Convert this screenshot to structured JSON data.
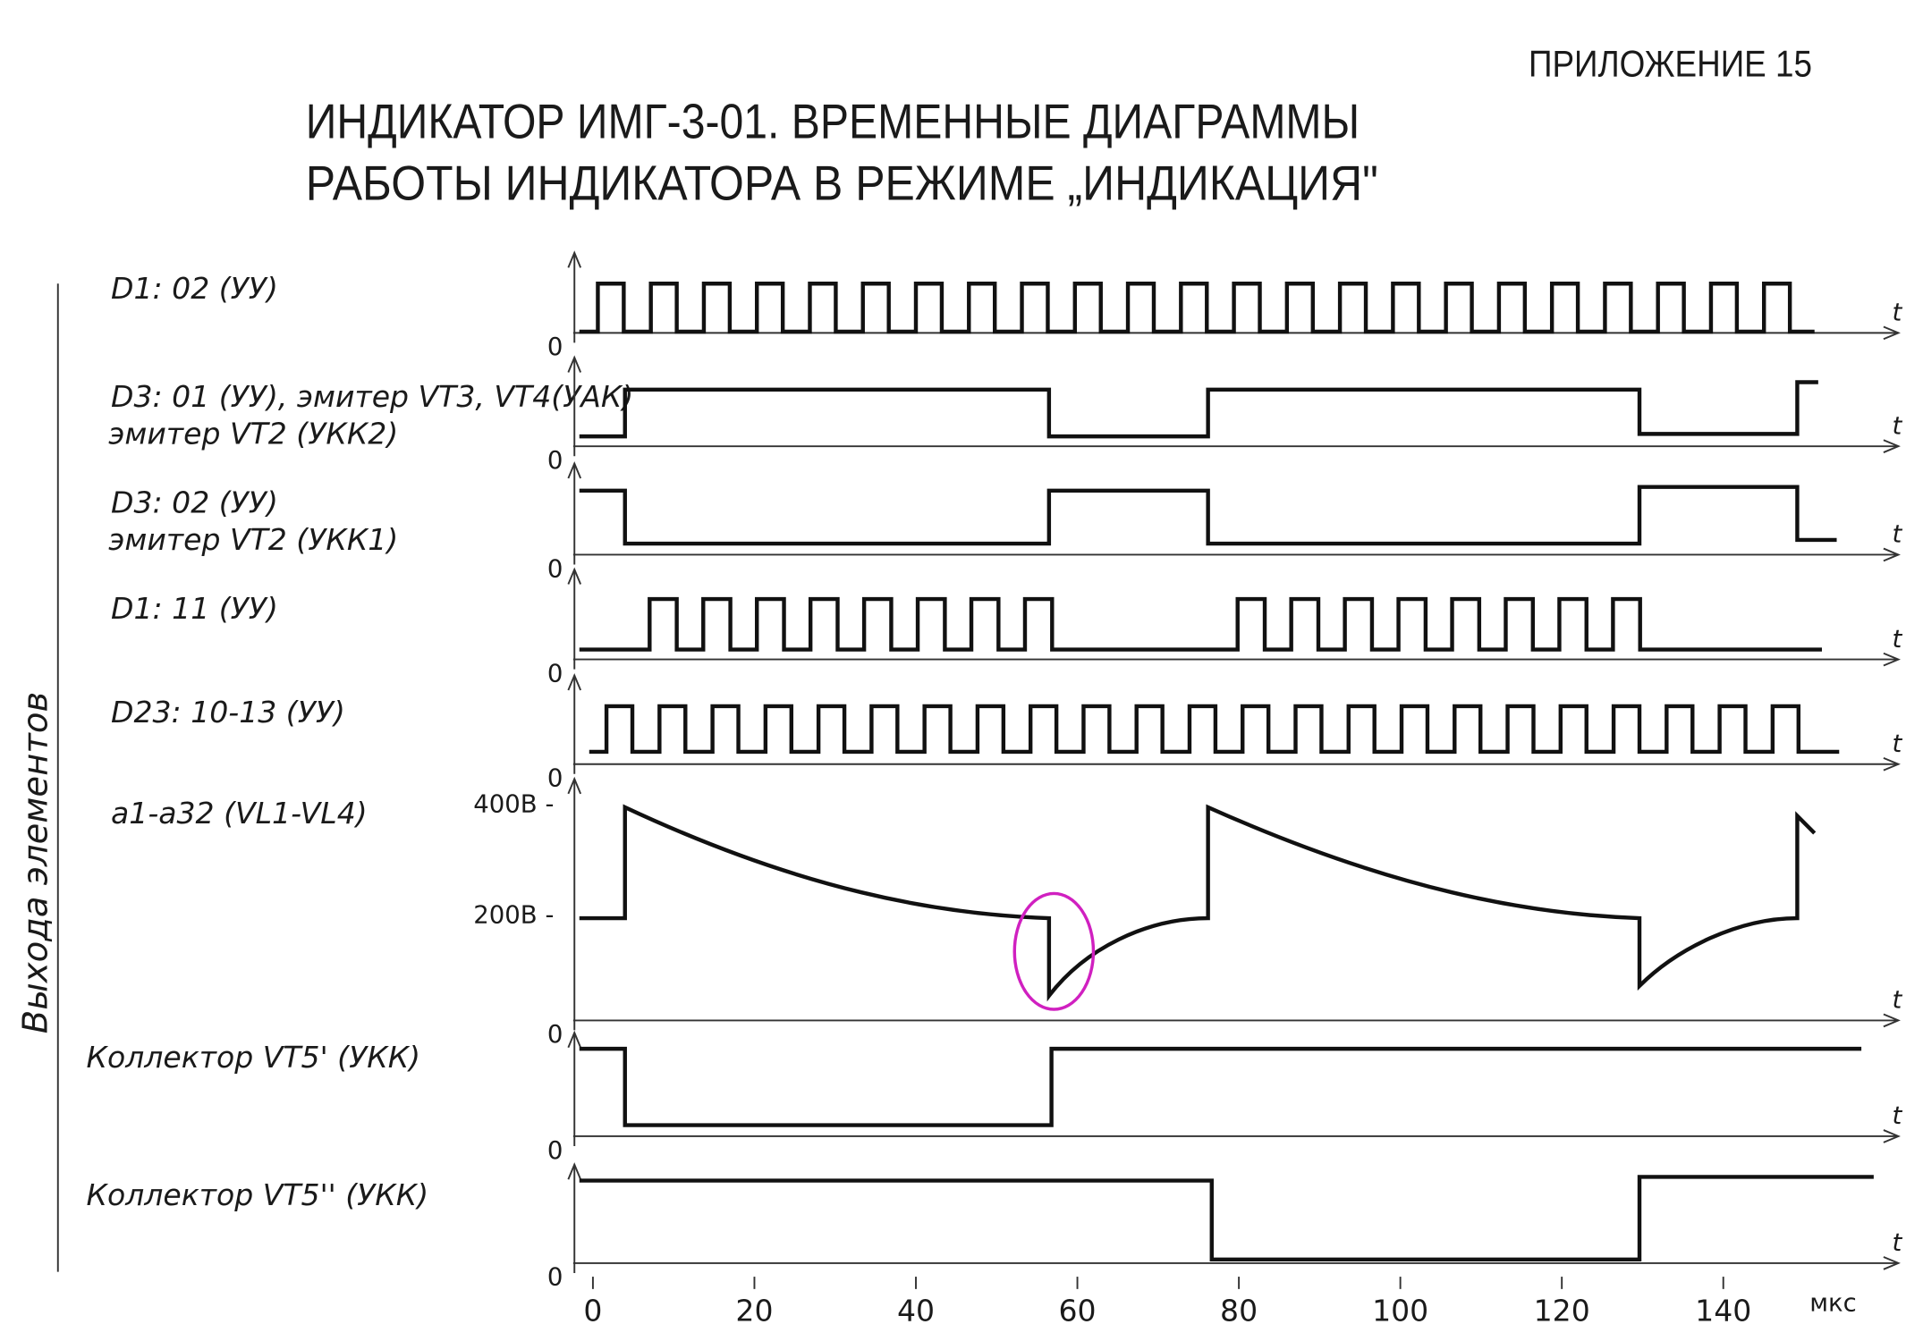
{
  "header": {
    "appendix": "ПРИЛОЖЕНИЕ 15",
    "title": [
      "ИНДИКАТОР ИМГ-3-01. ВРЕМЕННЫЕ ДИАГРАММЫ",
      "РАБОТЫ ИНДИКАТОРА В РЕЖИМЕ „ИНДИКАЦИЯ\""
    ]
  },
  "y_axis_label": "Выхода элементов",
  "signals": [
    {
      "label": [
        "D1: 02 (УУ)"
      ],
      "zero": "0",
      "t": "t"
    },
    {
      "label": [
        "D3: 01 (УУ), эмитер VT3, VT4(УАК)",
        "эмитер VT2 (УКК2)"
      ],
      "zero": "0",
      "t": "t"
    },
    {
      "label": [
        "D3: 02 (УУ)",
        "эмитер VT2 (УКК1)"
      ],
      "zero": "0",
      "t": "t"
    },
    {
      "label": [
        "D1: 11 (УУ)"
      ],
      "zero": "0",
      "t": "t"
    },
    {
      "label": [
        "D23: 10-13 (УУ)"
      ],
      "zero": "0",
      "t": "t"
    },
    {
      "label": [
        "a1-a32 (VL1-VL4)"
      ],
      "zero": "0",
      "t": "t",
      "levels": [
        "400В -",
        "200В -"
      ]
    },
    {
      "label": [
        "Коллектор VT5' (УКК)"
      ],
      "zero": "0",
      "t": "t"
    },
    {
      "label": [
        "Коллектор VT5'' (УКК)"
      ],
      "zero": "0",
      "t": "t"
    }
  ],
  "x_axis": {
    "ticks": [
      "0",
      "20",
      "40",
      "60",
      "80",
      "100",
      "120",
      "140"
    ],
    "unit": "мкс"
  }
}
